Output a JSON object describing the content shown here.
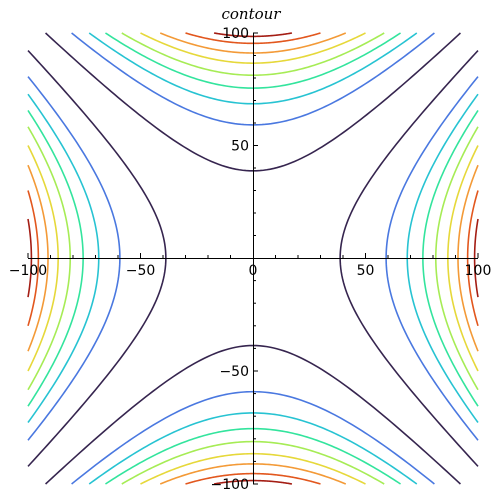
{
  "chart_data": {
    "type": "contour",
    "title": "contour",
    "xlabel": "",
    "ylabel": "",
    "xlim": [
      -100,
      100
    ],
    "ylim": [
      -100,
      100
    ],
    "x_ticks": [
      -100,
      -50,
      0,
      50,
      100
    ],
    "y_ticks": [
      -100,
      -50,
      50,
      100
    ],
    "grid": false,
    "legend": "none",
    "function": "y^2 - x^2",
    "series": [
      {
        "value": 1500,
        "color": "#36254f"
      },
      {
        "value": 3500,
        "color": "#4a78e0"
      },
      {
        "value": 4700,
        "color": "#27c3d2"
      },
      {
        "value": 5700,
        "color": "#33e49d"
      },
      {
        "value": 6600,
        "color": "#a6ec55"
      },
      {
        "value": 7500,
        "color": "#e6d83a"
      },
      {
        "value": 8300,
        "color": "#f39a37"
      },
      {
        "value": 9100,
        "color": "#e2571e"
      },
      {
        "value": 9700,
        "color": "#a41d14"
      }
    ]
  }
}
